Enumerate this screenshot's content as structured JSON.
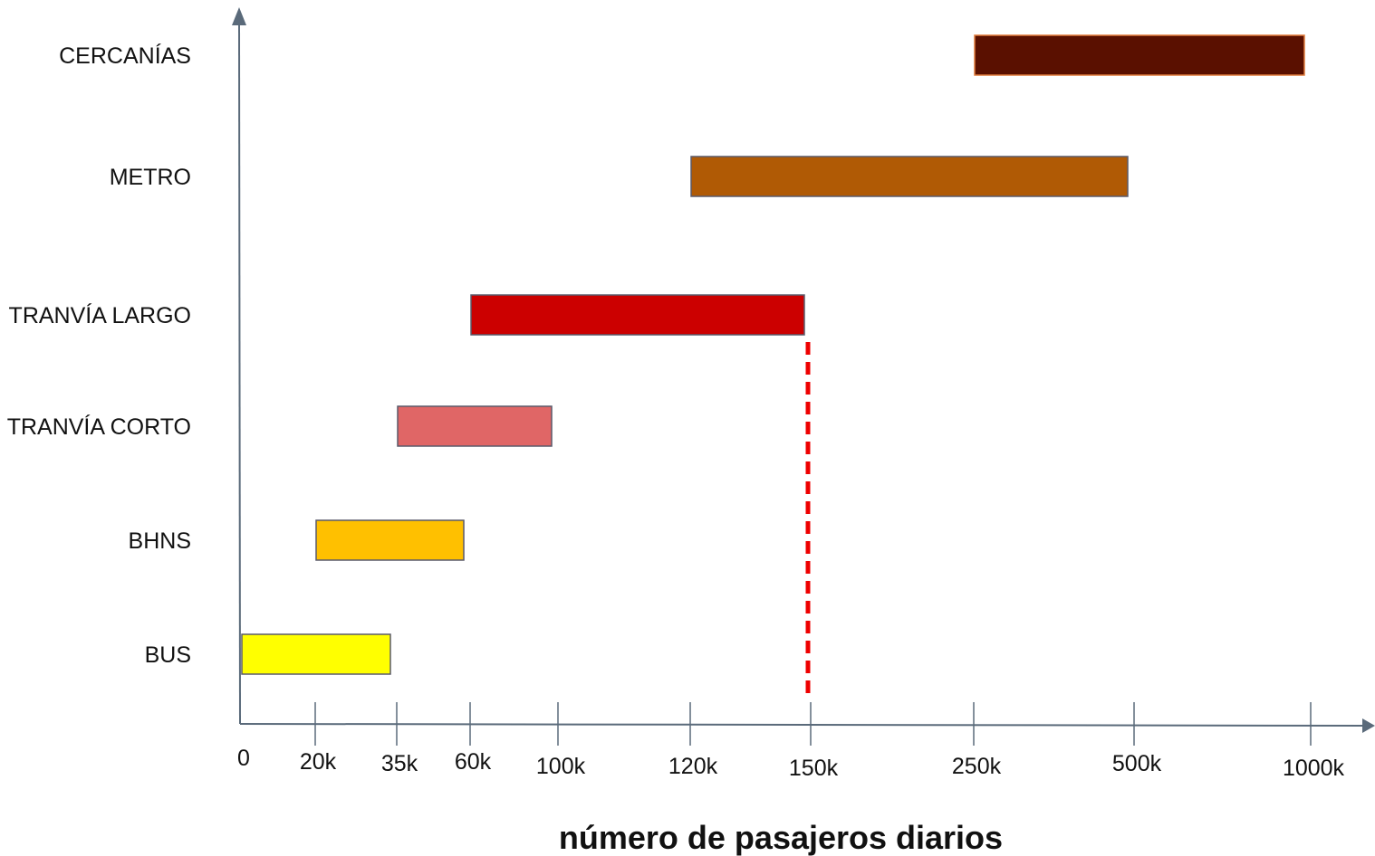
{
  "chart_data": {
    "type": "bar",
    "orientation": "horizontal-range",
    "title": "",
    "xlabel": "número de pasajeros diarios",
    "ylabel": "",
    "x_scale": "ordinal-ticks",
    "x_ticks": [
      "0",
      "20k",
      "35k",
      "60k",
      "100k",
      "120k",
      "150k",
      "250k",
      "500k",
      "1000k"
    ],
    "x_tick_values": [
      0,
      20000,
      35000,
      60000,
      100000,
      120000,
      150000,
      250000,
      500000,
      1000000
    ],
    "grid": false,
    "legend": "none",
    "categories": [
      "CERCANÍAS",
      "METRO",
      "TRANVÍA LARGO",
      "TRANVÍA CORTO",
      "BHNS",
      "BUS"
    ],
    "ranges": [
      {
        "category": "CERCANÍAS",
        "start": 250000,
        "end": 1000000,
        "color": "#5a1000",
        "border": "#e07a3a"
      },
      {
        "category": "METRO",
        "start": 120000,
        "end": 500000,
        "color": "#b05a05",
        "border": "#5a5a6a"
      },
      {
        "category": "TRANVÍA LARGO",
        "start": 60000,
        "end": 150000,
        "color": "#cc0000",
        "border": "#5a5a6a"
      },
      {
        "category": "TRANVÍA CORTO",
        "start": 35000,
        "end": 100000,
        "color": "#e06666",
        "border": "#5a5a6a"
      },
      {
        "category": "BHNS",
        "start": 20000,
        "end": 60000,
        "color": "#ffc000",
        "border": "#5a5a6a"
      },
      {
        "category": "BUS",
        "start": 0,
        "end": 35000,
        "color": "#ffff00",
        "border": "#5a5a6a"
      }
    ],
    "reference_line": {
      "x": 150000,
      "style": "dashed",
      "color": "#ee0000"
    },
    "axis_color": "#5a6a7a"
  }
}
